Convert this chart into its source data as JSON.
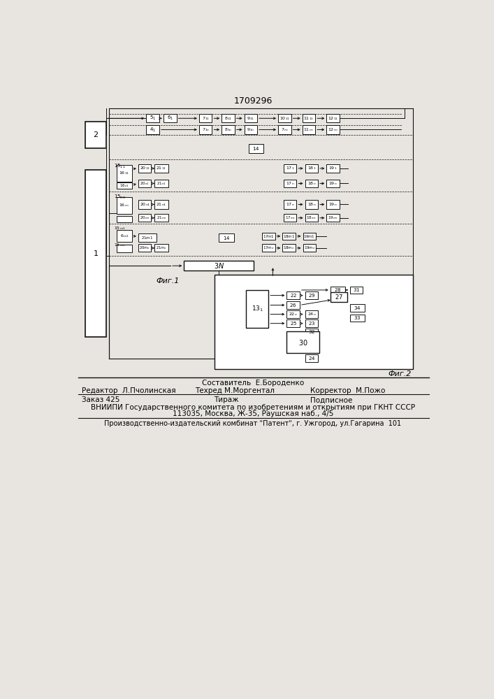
{
  "title": "1709296",
  "fig1_label": "Фиг.1",
  "fig2_label": "Фиг.2",
  "footer_line1": "Составитель  Е.Бороденко",
  "footer_editor": "Редактор  Л.Пчолинская",
  "footer_tech": "Техред М.Моргентал",
  "footer_corr": "Корректор  М.Пожо",
  "footer_order": "Заказ 425",
  "footer_tirazh": "Тираж",
  "footer_podp": "Подписное",
  "footer_vniipи": "ВНИИПИ Государственного комитета по изобретениям и открытиям при ГКНТ СССР",
  "footer_addr": "113035, Москва, Ж-35, Раушская наб., 4/5",
  "footer_patent": "Производственно-издательский комбинат \"Патент\", г. Ужгород, ул.Гагарина  101",
  "bg": "#e8e5e0",
  "lc": "#111111",
  "wc": "#ffffff"
}
